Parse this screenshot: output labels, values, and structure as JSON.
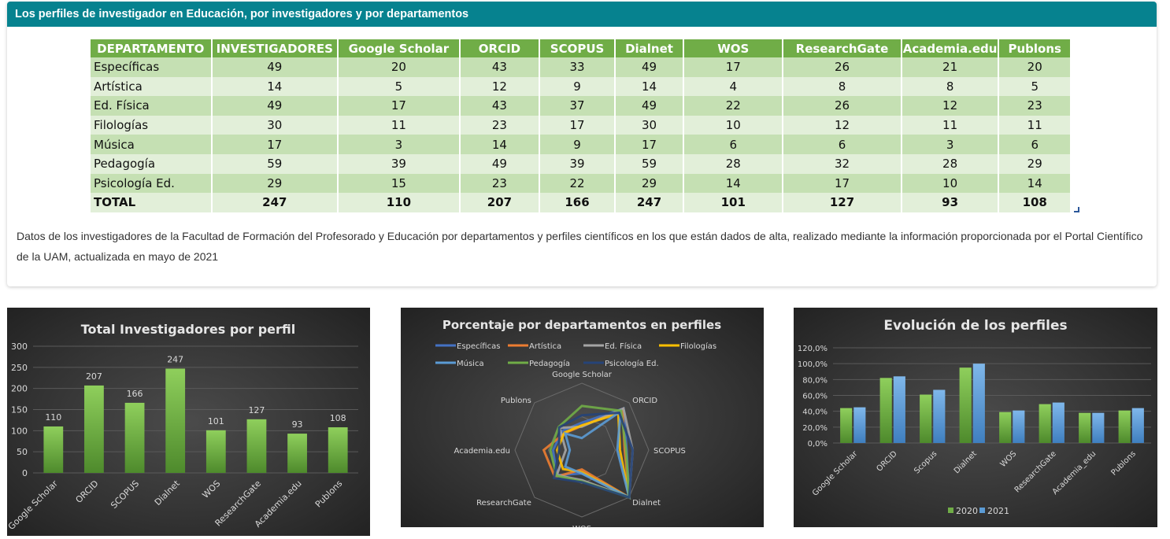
{
  "card": {
    "title": "Los perfiles de investigador en Educación, por investigadores y por departamentos",
    "caption": "Datos de los investigadores de la Facultad de Formación del Profesorado y Educación por departamentos y perfiles científicos en los que están dados de alta, realizado mediante la información proporcionada por el Portal Científico de la UAM, actualizada en mayo de 2021"
  },
  "table": {
    "headers": [
      "DEPARTAMENTO",
      "INVESTIGADORES",
      "Google Scholar",
      "ORCID",
      "SCOPUS",
      "Dialnet",
      "WOS",
      "ResearchGate",
      "Academia.edu",
      "Publons"
    ],
    "rows": [
      [
        "Específicas",
        "49",
        "20",
        "43",
        "33",
        "49",
        "17",
        "26",
        "21",
        "20"
      ],
      [
        "Artística",
        "14",
        "5",
        "12",
        "9",
        "14",
        "4",
        "8",
        "8",
        "5"
      ],
      [
        "Ed. Física",
        "49",
        "17",
        "43",
        "37",
        "49",
        "22",
        "26",
        "12",
        "23"
      ],
      [
        "Filologías",
        "30",
        "11",
        "23",
        "17",
        "30",
        "10",
        "12",
        "11",
        "11"
      ],
      [
        "Música",
        "17",
        "3",
        "14",
        "9",
        "17",
        "6",
        "6",
        "3",
        "6"
      ],
      [
        "Pedagogía",
        "59",
        "39",
        "49",
        "39",
        "59",
        "28",
        "32",
        "28",
        "29"
      ],
      [
        "Psicología Ed.",
        "29",
        "15",
        "23",
        "22",
        "29",
        "14",
        "17",
        "10",
        "14"
      ],
      [
        "TOTAL",
        "247",
        "110",
        "207",
        "166",
        "247",
        "101",
        "127",
        "93",
        "108"
      ]
    ]
  },
  "colors": {
    "header_bg": "#06828f",
    "table_header": "#70ad47",
    "row_odd": "#c5e0b3",
    "row_even": "#e2efd9",
    "bar_green": "#70ad47",
    "bar_blue": "#5b9bd5"
  },
  "chart_data": [
    {
      "type": "bar",
      "title": "Total Investigadores por perfil",
      "categories": [
        "Google Scholar",
        "ORCID",
        "SCOPUS",
        "Dialnet",
        "WOS",
        "ResearchGate",
        "Academia.edu",
        "Publons"
      ],
      "values": [
        110,
        207,
        166,
        247,
        101,
        127,
        93,
        108
      ],
      "ylim": [
        0,
        300
      ],
      "yticks": [
        "0",
        "50",
        "100",
        "150",
        "200",
        "250",
        "300"
      ],
      "data_labels": true,
      "grid": true
    },
    {
      "type": "radar",
      "title": "Porcentaje por departamentos en perfiles",
      "axes": [
        "Google Scholar",
        "ORCID",
        "SCOPUS",
        "Dialnet",
        "WOS",
        "ResearchGate",
        "Academia.edu",
        "Publons"
      ],
      "legend_position": "top",
      "series": [
        {
          "name": "Específicas",
          "color": "#4472c4",
          "values": [
            0.41,
            0.88,
            0.67,
            1.0,
            0.35,
            0.53,
            0.43,
            0.41
          ]
        },
        {
          "name": "Artística",
          "color": "#ed7d31",
          "values": [
            0.36,
            0.86,
            0.64,
            1.0,
            0.29,
            0.57,
            0.57,
            0.36
          ]
        },
        {
          "name": "Ed. Física",
          "color": "#a5a5a5",
          "values": [
            0.35,
            0.88,
            0.76,
            1.0,
            0.45,
            0.53,
            0.24,
            0.47
          ]
        },
        {
          "name": "Filologías",
          "color": "#ffc000",
          "values": [
            0.37,
            0.77,
            0.57,
            1.0,
            0.33,
            0.4,
            0.37,
            0.37
          ]
        },
        {
          "name": "Música",
          "color": "#5b9bd5",
          "values": [
            0.18,
            0.82,
            0.53,
            1.0,
            0.35,
            0.35,
            0.18,
            0.35
          ]
        },
        {
          "name": "Pedagogía",
          "color": "#70ad47",
          "values": [
            0.66,
            0.83,
            0.66,
            1.0,
            0.47,
            0.54,
            0.47,
            0.49
          ]
        },
        {
          "name": "Psicología Ed.",
          "color": "#264478",
          "values": [
            0.52,
            0.79,
            0.76,
            1.0,
            0.48,
            0.59,
            0.34,
            0.48
          ]
        }
      ]
    },
    {
      "type": "bar",
      "title": "Evolución de los perfiles",
      "categories": [
        "Google Scholar",
        "ORCID",
        "Scopus",
        "Dialnet",
        "WOS",
        "ResearchGate",
        "Academia_edu",
        "Publons"
      ],
      "yticks": [
        "0,0%",
        "20,0%",
        "40,0%",
        "60,0%",
        "80,0%",
        "100,0%",
        "120,0%"
      ],
      "ylim": [
        0,
        1.2
      ],
      "legend_position": "bottom",
      "series": [
        {
          "name": "2020",
          "color": "#70ad47",
          "values": [
            0.44,
            0.82,
            0.61,
            0.95,
            0.39,
            0.49,
            0.38,
            0.41
          ]
        },
        {
          "name": "2021",
          "color": "#5b9bd5",
          "values": [
            0.45,
            0.84,
            0.67,
            1.0,
            0.41,
            0.51,
            0.38,
            0.44
          ]
        }
      ]
    }
  ]
}
